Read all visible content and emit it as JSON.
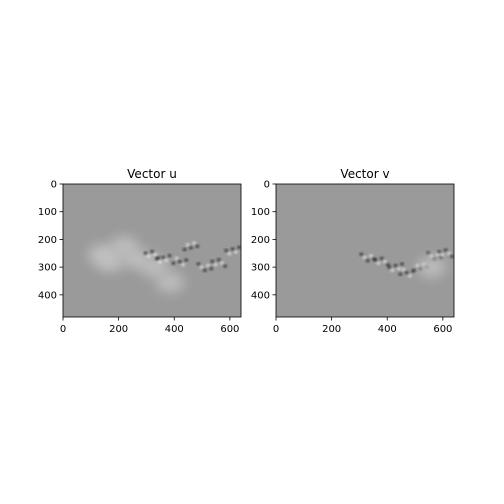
{
  "chart_data": [
    {
      "type": "heatmap",
      "title": "Vector u",
      "xlim": [
        0,
        640
      ],
      "ylim": [
        480,
        0
      ],
      "xticks": [
        "0",
        "200",
        "400",
        "600"
      ],
      "yticks": [
        "0",
        "100",
        "200",
        "300",
        "400"
      ],
      "colormap": "gray",
      "background_value_color": "#9a9a9a",
      "features": [
        {
          "kind": "bright-blob",
          "x": 140,
          "y": 255
        },
        {
          "kind": "bright-blob",
          "x": 220,
          "y": 225
        },
        {
          "kind": "bright-blob",
          "x": 170,
          "y": 280
        },
        {
          "kind": "bright-blob",
          "x": 265,
          "y": 270
        },
        {
          "kind": "bright-blob",
          "x": 330,
          "y": 300
        },
        {
          "kind": "bright-blob",
          "x": 385,
          "y": 355
        },
        {
          "kind": "dark-speckle",
          "x": 320,
          "y": 255
        },
        {
          "kind": "dark-speckle",
          "x": 360,
          "y": 270
        },
        {
          "kind": "dark-speckle",
          "x": 420,
          "y": 280
        },
        {
          "kind": "dark-speckle",
          "x": 460,
          "y": 225
        },
        {
          "kind": "dark-speckle",
          "x": 510,
          "y": 300
        },
        {
          "kind": "dark-speckle",
          "x": 560,
          "y": 285
        },
        {
          "kind": "dark-speckle",
          "x": 610,
          "y": 240
        }
      ]
    },
    {
      "type": "heatmap",
      "title": "Vector v",
      "xlim": [
        0,
        640
      ],
      "ylim": [
        480,
        0
      ],
      "xticks": [
        "0",
        "200",
        "400",
        "600"
      ],
      "yticks": [
        "0",
        "100",
        "200",
        "300",
        "400"
      ],
      "colormap": "gray",
      "background_value_color": "#9a9a9a",
      "features": [
        {
          "kind": "dark-speckle",
          "x": 330,
          "y": 265
        },
        {
          "kind": "dark-speckle",
          "x": 380,
          "y": 280
        },
        {
          "kind": "dark-speckle",
          "x": 430,
          "y": 300
        },
        {
          "kind": "dark-speckle",
          "x": 470,
          "y": 320
        },
        {
          "kind": "dark-speckle",
          "x": 520,
          "y": 300
        },
        {
          "kind": "dark-speckle",
          "x": 570,
          "y": 260
        },
        {
          "kind": "dark-speckle",
          "x": 610,
          "y": 250
        },
        {
          "kind": "bright-blob",
          "x": 560,
          "y": 300
        }
      ]
    }
  ]
}
